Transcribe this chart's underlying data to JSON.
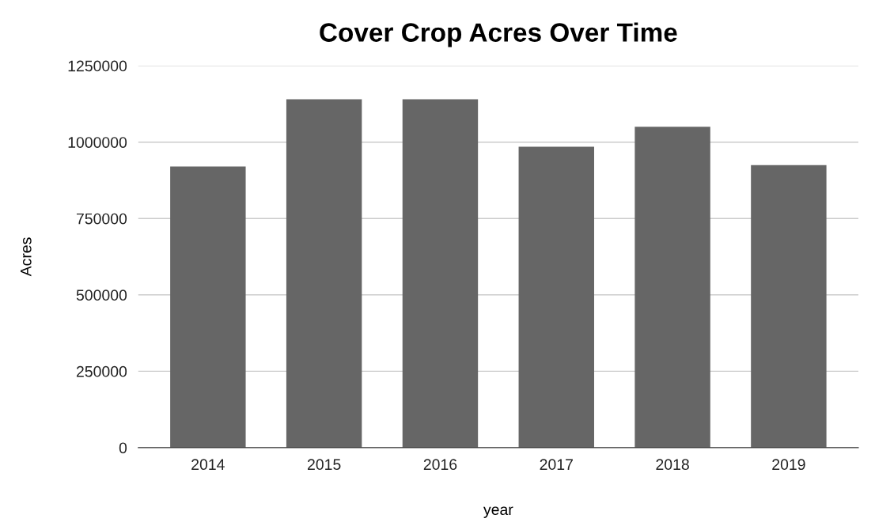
{
  "chart_data": {
    "type": "bar",
    "title": "Cover Crop Acres Over Time",
    "xlabel": "year",
    "ylabel": "Acres",
    "categories": [
      "2014",
      "2015",
      "2016",
      "2017",
      "2018",
      "2019"
    ],
    "values": [
      920000,
      1140000,
      1140000,
      985000,
      1050000,
      925000
    ],
    "color": "#666666",
    "ylim": [
      0,
      1250000
    ],
    "yticks": [
      0,
      250000,
      500000,
      750000,
      1000000,
      1250000
    ],
    "grid": "y",
    "legend": false
  }
}
